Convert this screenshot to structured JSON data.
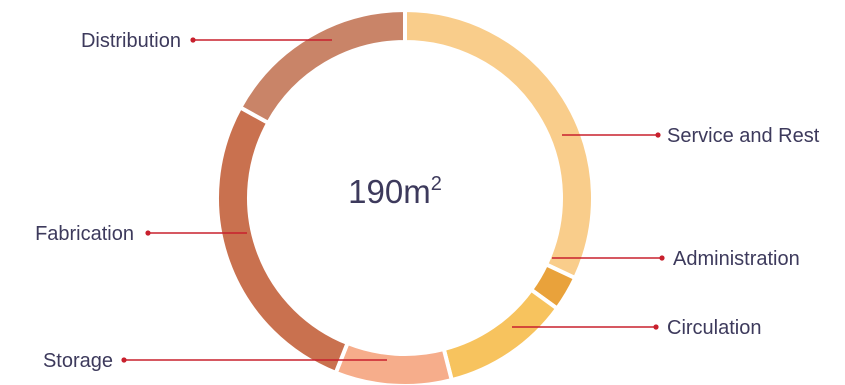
{
  "chart_data": {
    "type": "pie",
    "center_label": {
      "value": "190m",
      "superscript": "2"
    },
    "series": [
      {
        "name": "Service and Rest",
        "value": 32.0,
        "color": "#f9cd8b"
      },
      {
        "name": "Administration",
        "value": 3.0,
        "color": "#e9a23b"
      },
      {
        "name": "Circulation",
        "value": 11.0,
        "color": "#f7c35e"
      },
      {
        "name": "Storage",
        "value": 10.0,
        "color": "#f6ad8b"
      },
      {
        "name": "Fabrication",
        "value": 27.0,
        "color": "#c9714f"
      },
      {
        "name": "Distribution",
        "value": 17.0,
        "color": "#c98468"
      }
    ],
    "colors": {
      "leader_line": "#c8202d",
      "label_text": "#3d3a5c",
      "gap": "#ffffff"
    }
  }
}
